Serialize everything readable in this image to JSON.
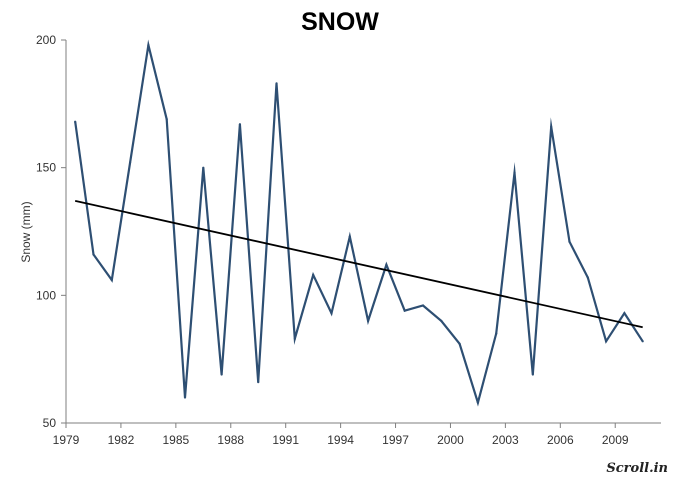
{
  "chart_data": {
    "type": "line",
    "title": "SNOW",
    "xlabel": "",
    "ylabel": "Snow (mm)",
    "xlim": [
      1979,
      2011.5
    ],
    "ylim": [
      50,
      200
    ],
    "x_ticks": [
      "1979",
      "1982",
      "1985",
      "1988",
      "1991",
      "1994",
      "1997",
      "2000",
      "2003",
      "2006",
      "2009"
    ],
    "y_ticks": [
      "50",
      "100",
      "150",
      "200"
    ],
    "grid": false,
    "series": [
      {
        "name": "",
        "color": "#2e4f73",
        "x": [
          1979.5,
          1980.5,
          1981.5,
          1982.5,
          1983.5,
          1984.5,
          1985.5,
          1986.5,
          1987.5,
          1988.5,
          1989.5,
          1990.5,
          1991.5,
          1992.5,
          1993.5,
          1994.5,
          1995.5,
          1996.5,
          1997.5,
          1998.5,
          1999.5,
          2000.5,
          2001.5,
          2002.5,
          2003.5,
          2004.5,
          2005.5,
          2006.5,
          2007.5,
          2008.5,
          2009.5,
          2010.5
        ],
        "values": [
          168,
          116,
          106,
          152,
          198,
          169,
          60,
          150,
          69,
          167,
          66,
          183,
          83,
          108,
          93,
          123,
          90,
          112,
          94,
          96,
          90,
          81,
          58,
          85,
          148,
          69,
          166,
          121,
          107,
          82,
          93,
          82
        ]
      }
    ],
    "trendline": {
      "color": "#000000",
      "x": [
        1979.5,
        2010.5
      ],
      "values": [
        137,
        87.5
      ]
    }
  },
  "brand": {
    "text": "Scroll.in"
  }
}
